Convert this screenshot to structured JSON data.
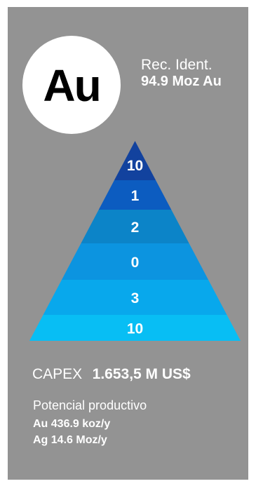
{
  "element": {
    "symbol": "Au",
    "resources_label": "Rec. Ident.",
    "resources_value": "94.9 Moz Au"
  },
  "pyramid": {
    "levels": [
      {
        "label": "10",
        "color": "#12429e"
      },
      {
        "label": "1",
        "color": "#0c5cc0"
      },
      {
        "label": "2",
        "color": "#0c84c8"
      },
      {
        "label": "0",
        "color": "#0c94e0"
      },
      {
        "label": "3",
        "color": "#08a8ec"
      },
      {
        "label": "10",
        "color": "#08bef4"
      }
    ]
  },
  "capex": {
    "label": "CAPEX",
    "value": "1.653,5 M US$"
  },
  "potential": {
    "label": "Potencial productivo",
    "lines": [
      "Au 436.9 koz/y",
      "Ag 14.6 Moz/y"
    ]
  },
  "colors": {
    "panel": "#939393",
    "text": "#ffffff",
    "circle": "#ffffff"
  }
}
